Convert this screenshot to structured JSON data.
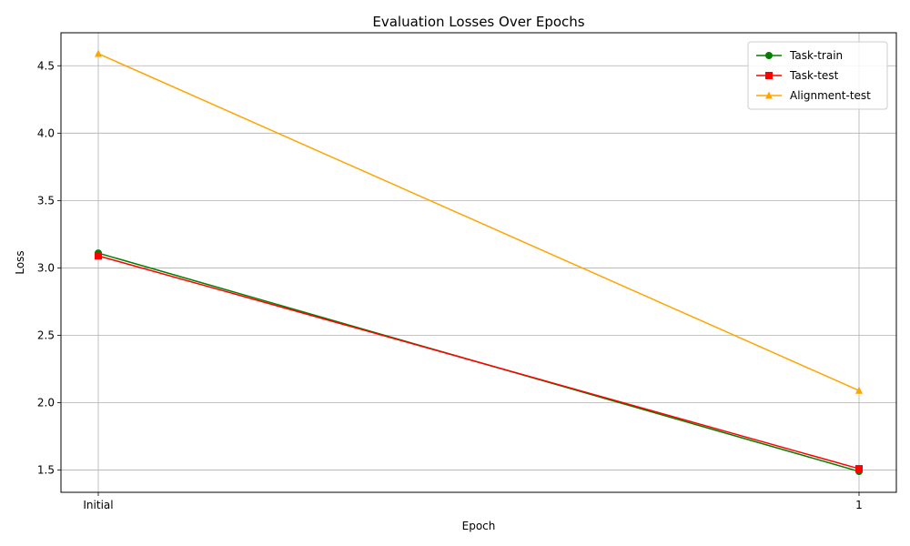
{
  "chart_data": {
    "type": "line",
    "title": "Evaluation Losses Over Epochs",
    "xlabel": "Epoch",
    "ylabel": "Loss",
    "categories": [
      "Initial",
      "1"
    ],
    "ylim": [
      1.335,
      4.745
    ],
    "yticks": [
      1.5,
      2.0,
      2.5,
      3.0,
      3.5,
      4.0,
      4.5
    ],
    "grid": true,
    "legend_position": "top-right",
    "series": [
      {
        "name": "Task-train",
        "values": [
          3.11,
          1.49
        ],
        "color": "#008000",
        "marker": "circle"
      },
      {
        "name": "Task-test",
        "values": [
          3.09,
          1.51
        ],
        "color": "#ff0000",
        "marker": "square"
      },
      {
        "name": "Alignment-test",
        "values": [
          4.59,
          2.09
        ],
        "color": "#ffa500",
        "marker": "triangle"
      }
    ]
  }
}
